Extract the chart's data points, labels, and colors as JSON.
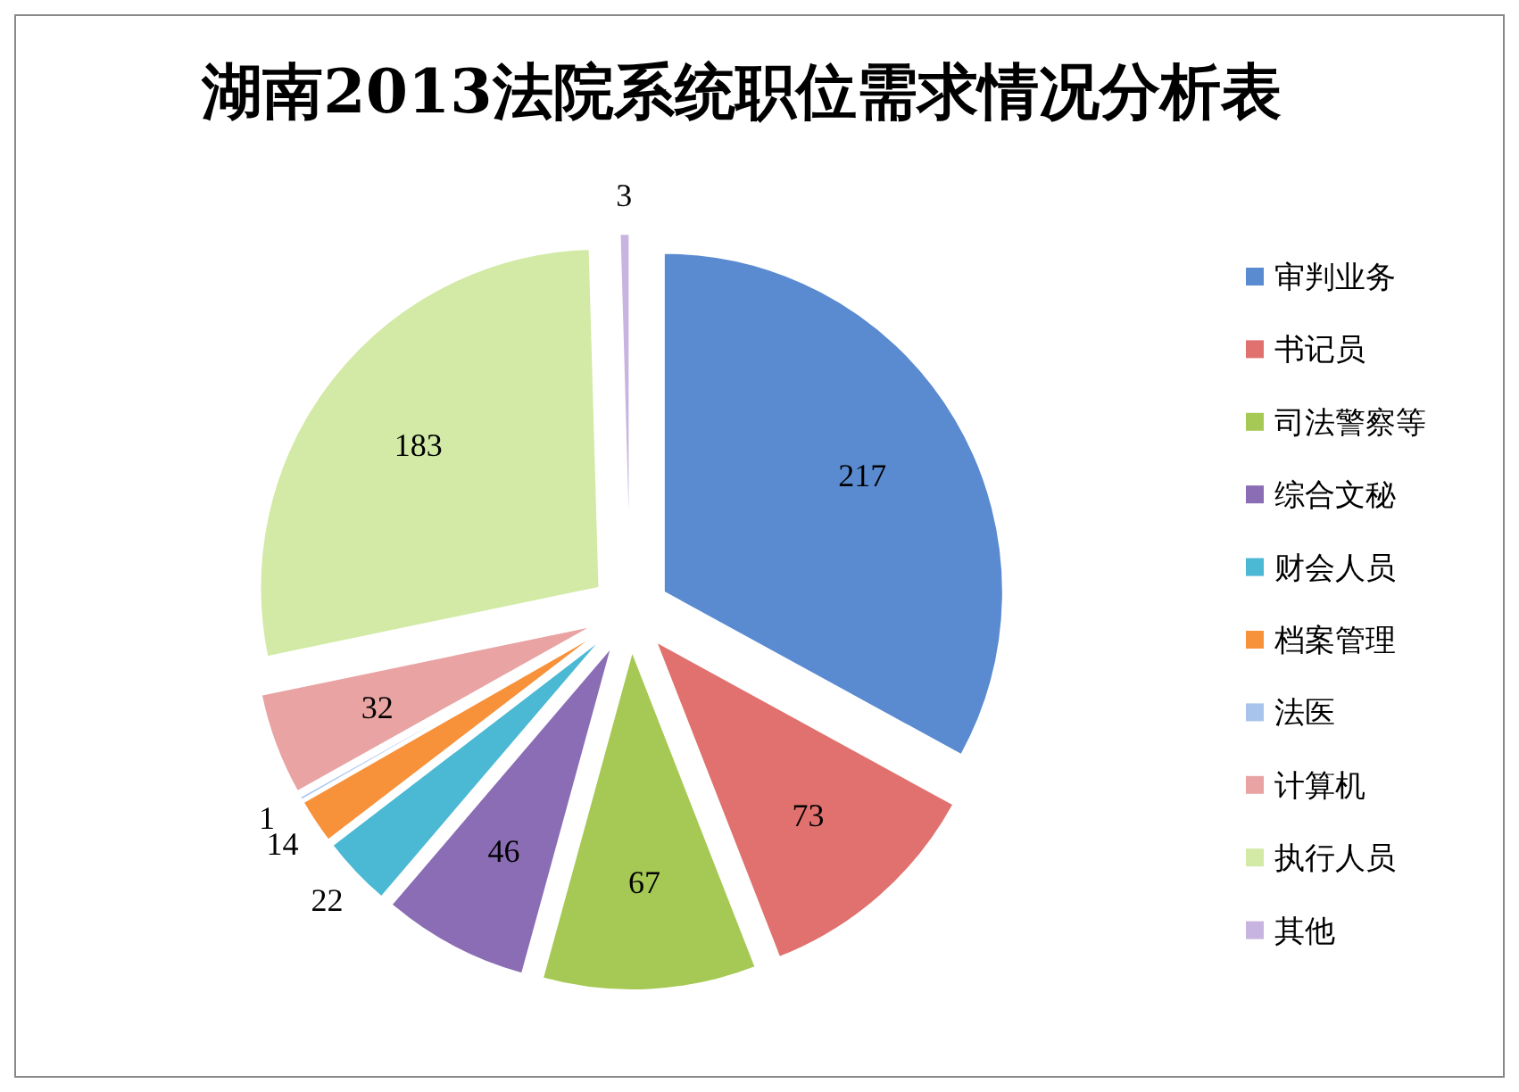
{
  "chart_data": {
    "type": "pie",
    "title": "湖南2013法院系统职位需求情况分析表",
    "categories": [
      "审判业务",
      "书记员",
      "司法警察等",
      "综合文秘",
      "财会人员",
      "档案管理",
      "法医",
      "计算机",
      "执行人员",
      "其他"
    ],
    "values": [
      217,
      73,
      67,
      46,
      22,
      14,
      1,
      32,
      183,
      3
    ],
    "colors": [
      "#5a8ad0",
      "#e0716e",
      "#a5c954",
      "#8a6db5",
      "#4bb8d4",
      "#f7923a",
      "#a8c4ec",
      "#e9a3a3",
      "#d2eaa6",
      "#c8b4e0"
    ],
    "data_labels": true,
    "legend": "right"
  }
}
